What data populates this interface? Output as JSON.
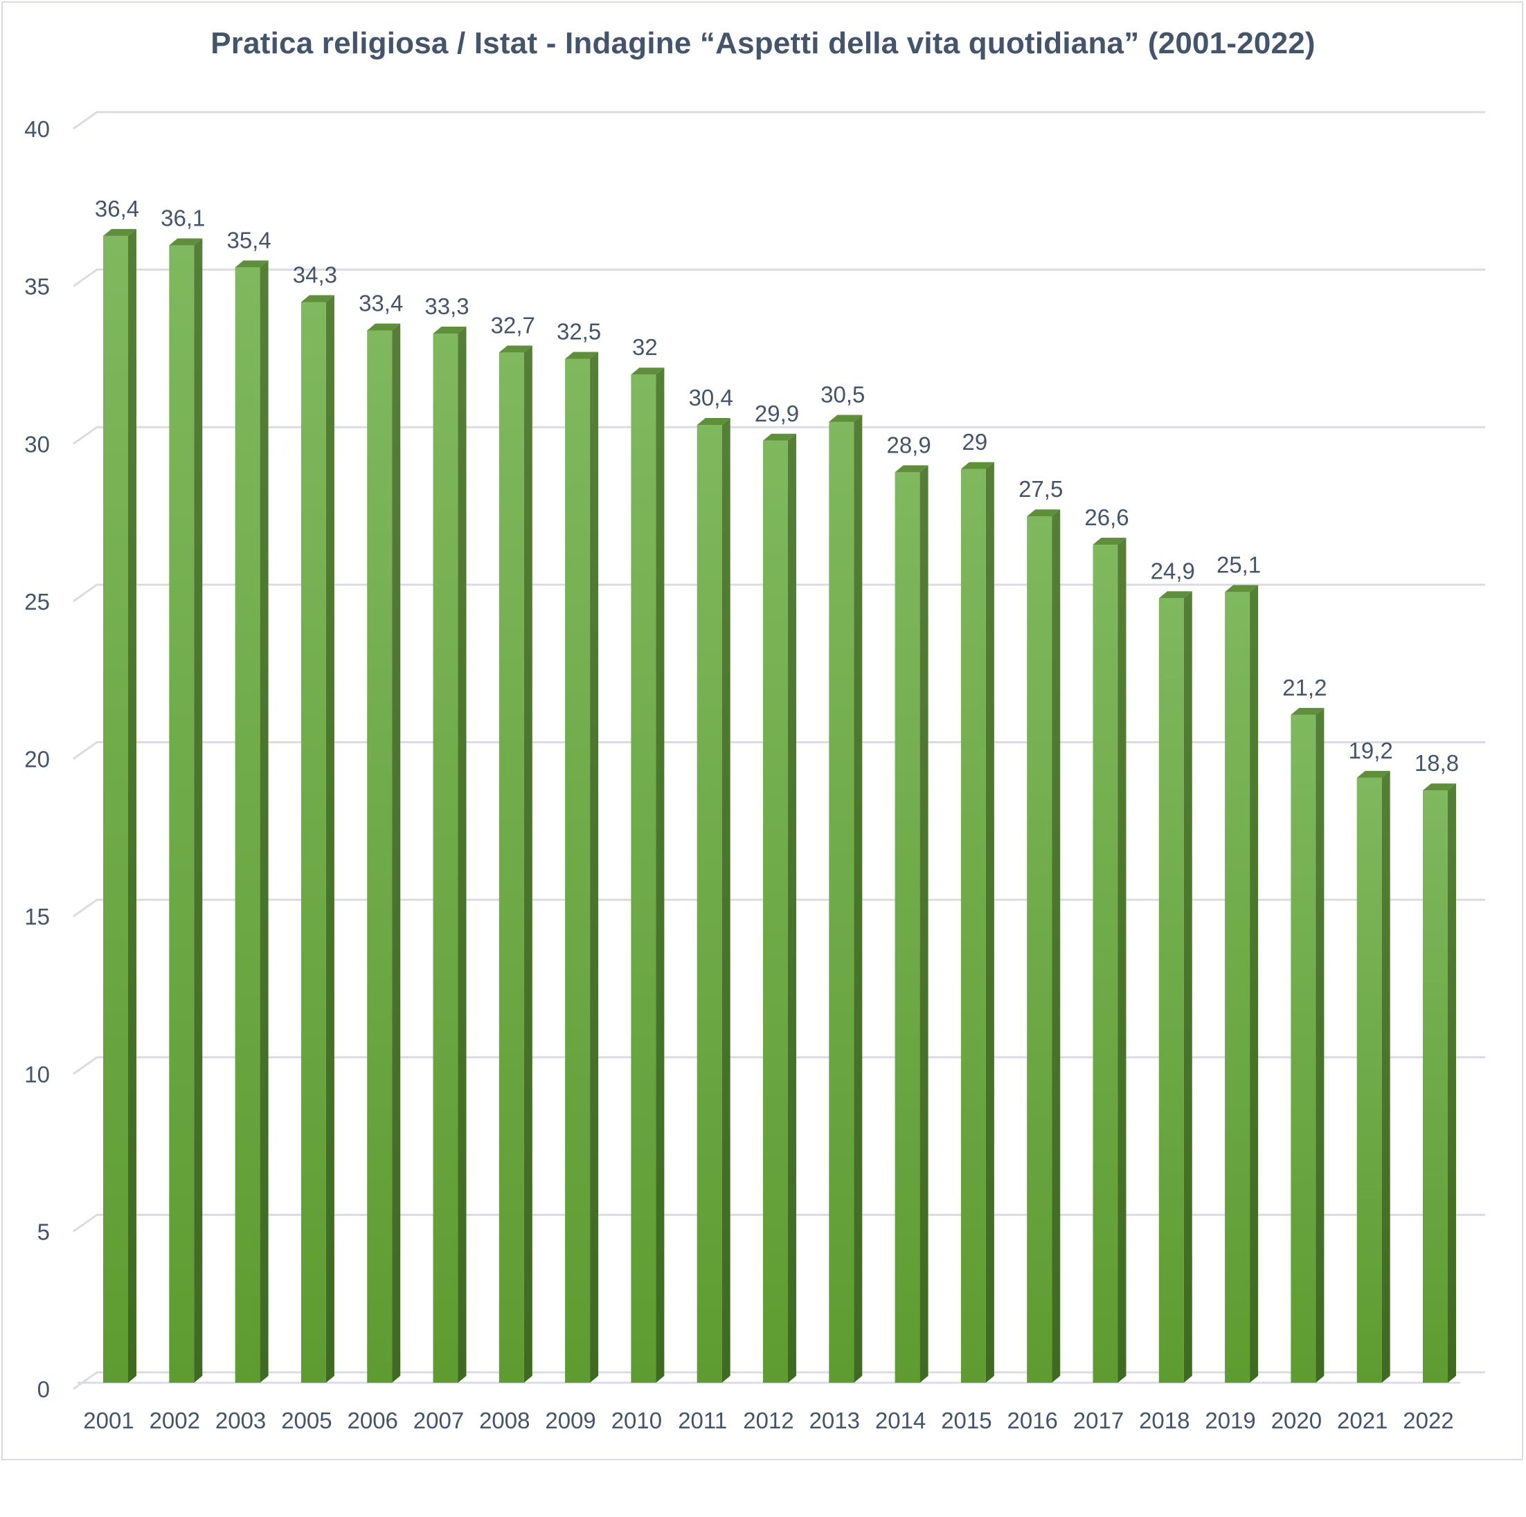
{
  "chart_data": {
    "type": "bar",
    "title": "Pratica religiosa / Istat - Indagine “Aspetti della vita quotidiana” (2001-2022)",
    "xlabel": "",
    "ylabel": "",
    "categories": [
      "2001",
      "2002",
      "2003",
      "2005",
      "2006",
      "2007",
      "2008",
      "2009",
      "2010",
      "2011",
      "2012",
      "2013",
      "2014",
      "2015",
      "2016",
      "2017",
      "2018",
      "2019",
      "2020",
      "2021",
      "2022"
    ],
    "values": [
      36.4,
      36.1,
      35.4,
      34.3,
      33.4,
      33.3,
      32.7,
      32.5,
      32,
      30.4,
      29.9,
      30.5,
      28.9,
      29,
      27.5,
      26.6,
      24.9,
      25.1,
      21.2,
      19.2,
      18.8
    ],
    "value_labels": [
      "36,4",
      "36,1",
      "35,4",
      "34,3",
      "33,4",
      "33,3",
      "32,7",
      "32,5",
      "32",
      "30,4",
      "29,9",
      "30,5",
      "28,9",
      "29",
      "27,5",
      "26,6",
      "24,9",
      "25,1",
      "21,2",
      "19,2",
      "18,8"
    ],
    "ylim": [
      0,
      40
    ],
    "yticks": [
      "0",
      "5",
      "10",
      "15",
      "20",
      "25",
      "30",
      "35",
      "40"
    ],
    "grid": true,
    "legend": "none",
    "colors": {
      "bar_front": "#70ad47",
      "bar_side": "#4e7a2f",
      "bar_top": "#5f8f3b",
      "grid": "#d9dce3",
      "text": "#44546a"
    }
  }
}
